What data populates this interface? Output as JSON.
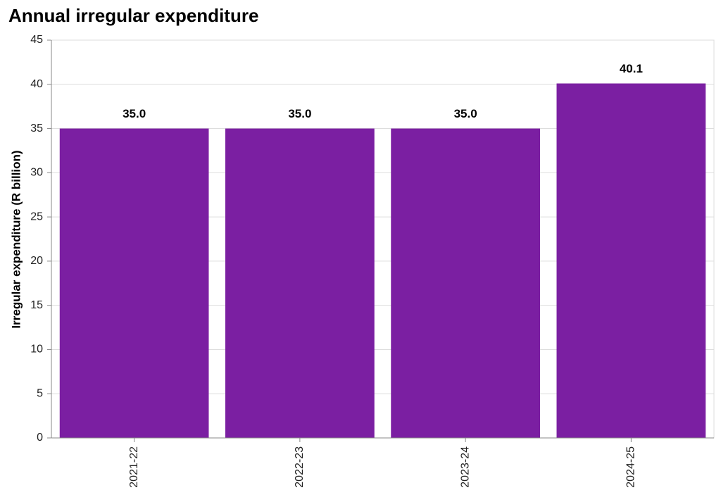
{
  "chart_data": {
    "type": "bar",
    "title": "Annual irregular expenditure",
    "y_label": "Irregular expenditure (R billion)",
    "categories": [
      "2021-22",
      "2022-23",
      "2023-24",
      "2024-25"
    ],
    "values": [
      35.0,
      35.0,
      35.0,
      40.1
    ],
    "value_labels": [
      "35.0",
      "35.0",
      "35.0",
      "40.1"
    ],
    "color": "#7b1fa2",
    "ylim": [
      0,
      45
    ],
    "yticks": [
      0,
      5,
      10,
      15,
      20,
      25,
      30,
      35,
      40,
      45
    ],
    "grid": true
  }
}
